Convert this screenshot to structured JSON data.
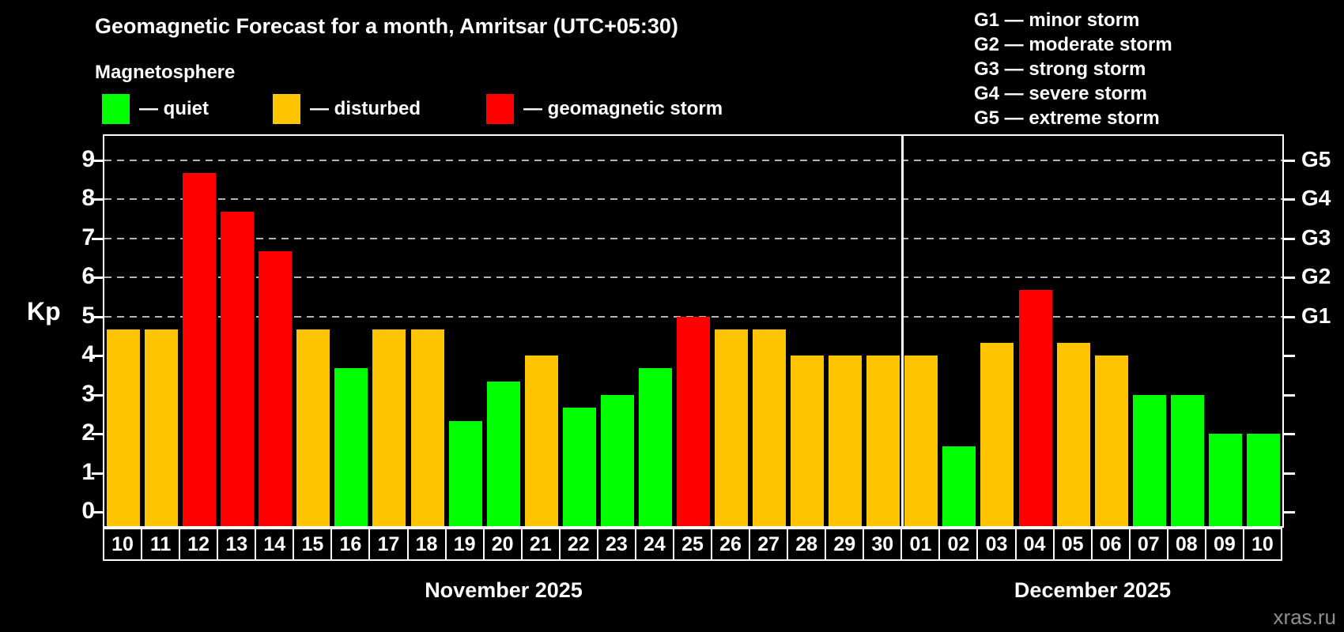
{
  "header": {
    "title": "Geomagnetic Forecast for a month, Amritsar (UTC+05:30)",
    "subtitle": "Magnetosphere"
  },
  "legend": {
    "items": [
      {
        "key": "quiet",
        "label": "— quiet",
        "color": "#00ff00"
      },
      {
        "key": "disturbed",
        "label": "— disturbed",
        "color": "#ffc400"
      },
      {
        "key": "storm",
        "label": "— geomagnetic storm",
        "color": "#ff0000"
      }
    ]
  },
  "gscale_legend": [
    "G1 — minor storm",
    "G2 — moderate storm",
    "G3 — strong storm",
    "G4 — severe storm",
    "G5 — extreme storm"
  ],
  "watermark": "xras.ru",
  "chart_data": {
    "type": "bar",
    "ylabel": "Kp",
    "ylim": [
      0,
      9.6
    ],
    "y_ticks": [
      0,
      1,
      2,
      3,
      4,
      5,
      6,
      7,
      8,
      9
    ],
    "gridlines_at": [
      5,
      6,
      7,
      8,
      9
    ],
    "right_axis_labels": [
      {
        "kp": 5,
        "label": "G1"
      },
      {
        "kp": 6,
        "label": "G2"
      },
      {
        "kp": 7,
        "label": "G3"
      },
      {
        "kp": 8,
        "label": "G4"
      },
      {
        "kp": 9,
        "label": "G5"
      }
    ],
    "grid": "dashed-horizontal",
    "legend_position": "top",
    "months": [
      {
        "label": "November 2025",
        "days": 21
      },
      {
        "label": "December 2025",
        "days": 10
      }
    ],
    "categories": [
      "10",
      "11",
      "12",
      "13",
      "14",
      "15",
      "16",
      "17",
      "18",
      "19",
      "20",
      "21",
      "22",
      "23",
      "24",
      "25",
      "26",
      "27",
      "28",
      "29",
      "30",
      "01",
      "02",
      "03",
      "04",
      "05",
      "06",
      "07",
      "08",
      "09",
      "10"
    ],
    "values": [
      4.67,
      4.67,
      8.67,
      7.67,
      6.67,
      4.67,
      3.67,
      4.67,
      4.67,
      2.33,
      3.33,
      4.0,
      2.67,
      3.0,
      3.67,
      5.0,
      4.67,
      4.67,
      4.0,
      4.0,
      4.0,
      4.0,
      1.67,
      4.33,
      5.67,
      4.33,
      4.0,
      3.0,
      3.0,
      2.0,
      2.0
    ],
    "statuses": [
      "disturbed",
      "disturbed",
      "storm",
      "storm",
      "storm",
      "disturbed",
      "quiet",
      "disturbed",
      "disturbed",
      "quiet",
      "quiet",
      "disturbed",
      "quiet",
      "quiet",
      "quiet",
      "storm",
      "disturbed",
      "disturbed",
      "disturbed",
      "disturbed",
      "disturbed",
      "disturbed",
      "quiet",
      "disturbed",
      "storm",
      "disturbed",
      "disturbed",
      "quiet",
      "quiet",
      "quiet",
      "quiet"
    ],
    "colors": {
      "quiet": "#00ff00",
      "disturbed": "#ffc400",
      "storm": "#ff0000"
    }
  }
}
